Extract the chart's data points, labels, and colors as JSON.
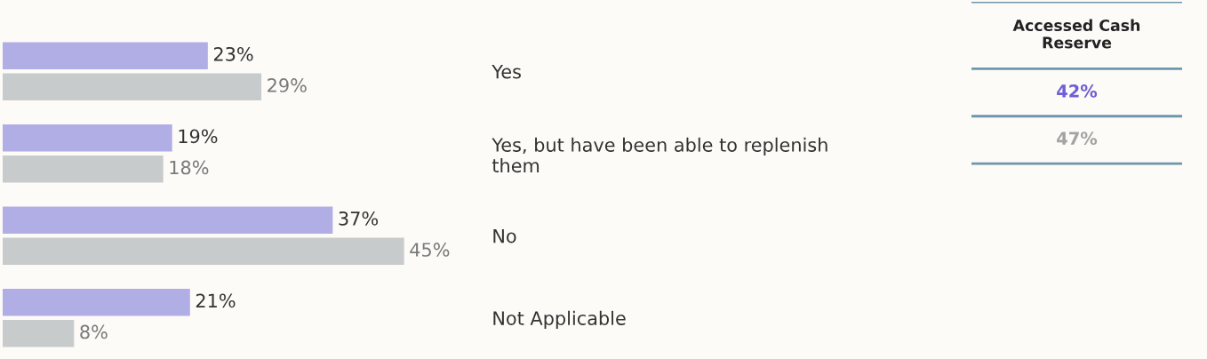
{
  "chart_data": [
    {
      "type": "bar",
      "orientation": "horizontal",
      "categories": [
        "Yes",
        "Yes, but have been able to replenish\nthem",
        "No",
        "Not Applicable"
      ],
      "series": [
        {
          "color": "#b1aee6",
          "values": [
            23,
            19,
            37,
            21
          ],
          "value_labels": [
            "23%",
            "19%",
            "37%",
            "21%"
          ]
        },
        {
          "color": "#c8cbcb",
          "values": [
            29,
            18,
            45,
            8
          ],
          "value_labels": [
            "29%",
            "18%",
            "45%",
            "8%"
          ]
        }
      ]
    },
    {
      "type": "other",
      "title": "Accessed Cash\nReserve",
      "annotations": [
        "42%",
        "47%"
      ],
      "colors": [
        "#6f5fd6",
        "#a3a3a3"
      ]
    }
  ]
}
